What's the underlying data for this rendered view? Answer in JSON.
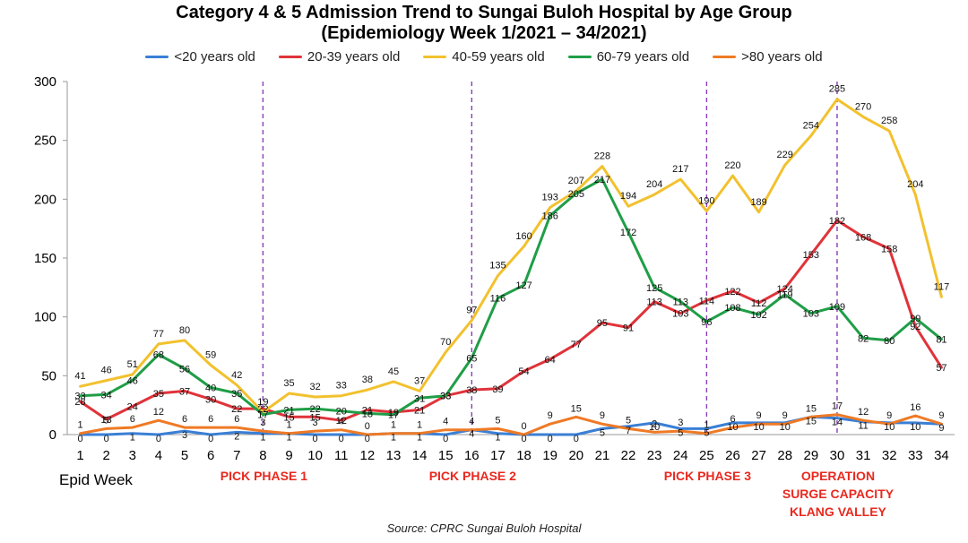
{
  "chart_data": {
    "type": "line",
    "title": "Category 4 & 5 Admission Trend to Sungai Buloh Hospital by Age Group",
    "subtitle": "(Epidemiology Week 1/2021  –  34/2021)",
    "xlabel": "Epid Week",
    "x": [
      1,
      2,
      3,
      4,
      5,
      6,
      7,
      8,
      9,
      10,
      11,
      12,
      13,
      14,
      15,
      16,
      17,
      18,
      19,
      20,
      21,
      22,
      23,
      24,
      25,
      26,
      27,
      28,
      29,
      30,
      31,
      32,
      33,
      34
    ],
    "ylim": [
      0,
      300
    ],
    "yticks": [
      0,
      50,
      100,
      150,
      200,
      250,
      300
    ],
    "grid": false,
    "legend_position": "top",
    "series": [
      {
        "name": "<20 years old",
        "color": "#3a7fd5",
        "values": [
          0,
          0,
          1,
          0,
          3,
          0,
          2,
          1,
          1,
          0,
          0,
          0,
          1,
          1,
          0,
          4,
          1,
          0,
          0,
          0,
          5,
          7,
          10,
          5,
          5,
          10,
          10,
          10,
          15,
          14,
          11,
          10,
          10,
          9
        ],
        "labels": [
          "0",
          "0",
          "1",
          "0",
          "3",
          "0",
          "2",
          "1",
          "1",
          "0",
          "0",
          "0",
          "1",
          "1",
          "0",
          "4",
          "1",
          "0",
          "0",
          "0",
          "5",
          "7",
          "10",
          "5",
          "5",
          "10",
          "10",
          "10",
          "15",
          "14",
          "11",
          "10",
          "10",
          "9"
        ]
      },
      {
        "name": "20-39 years old",
        "color": "#e0333a",
        "values": [
          28,
          13,
          24,
          35,
          37,
          30,
          22,
          22,
          15,
          15,
          12,
          21,
          19,
          21,
          33,
          38,
          39,
          54,
          64,
          77,
          95,
          91,
          113,
          103,
          114,
          122,
          112,
          124,
          153,
          182,
          168,
          158,
          92,
          57
        ],
        "labels": [
          "28",
          "13",
          "24",
          "35",
          "37",
          "30",
          "22",
          "22",
          "15",
          "15",
          "12",
          "21",
          "19",
          "21",
          "33",
          "38",
          "39",
          "54",
          "64",
          "77",
          "95",
          "91",
          "113",
          "103",
          "114",
          "122",
          "112",
          "124",
          "153",
          "182",
          "168",
          "158",
          "92",
          "57"
        ]
      },
      {
        "name": "40-59 years old",
        "color": "#f2c12e",
        "values": [
          41,
          46,
          51,
          77,
          80,
          59,
          42,
          19,
          35,
          32,
          33,
          38,
          45,
          37,
          70,
          97,
          135,
          160,
          193,
          207,
          228,
          194,
          204,
          217,
          190,
          220,
          189,
          229,
          254,
          285,
          270,
          258,
          204,
          117
        ],
        "labels": [
          "41",
          "46",
          "51",
          "77",
          "80",
          "59",
          "42",
          "19",
          "35",
          "32",
          "33",
          "38",
          "45",
          "37",
          "70",
          "97",
          "135",
          "160",
          "193",
          "207",
          "228",
          "194",
          "204",
          "217",
          "190",
          "220",
          "189",
          "229",
          "254",
          "285",
          "270",
          "258",
          "204",
          "117"
        ]
      },
      {
        "name": "60-79 years old",
        "color": "#1f9e47",
        "values": [
          33,
          34,
          46,
          68,
          56,
          40,
          35,
          17,
          21,
          22,
          20,
          18,
          17,
          31,
          33,
          65,
          116,
          127,
          186,
          205,
          217,
          172,
          125,
          113,
          96,
          108,
          102,
          119,
          103,
          109,
          82,
          80,
          99,
          81
        ],
        "labels": [
          "33",
          "34",
          "46",
          "68",
          "56",
          "40",
          "35",
          "17",
          "21",
          "22",
          "20",
          "18",
          "17",
          "31",
          "33",
          "65",
          "116",
          "127",
          "186",
          "205",
          "217",
          "172",
          "125",
          "113",
          "96",
          "108",
          "102",
          "119",
          "103",
          "109",
          "82",
          "80",
          "99",
          "81"
        ]
      },
      {
        "name": ">80 years old",
        "color": "#ef7a25",
        "values": [
          1,
          5,
          6,
          12,
          6,
          6,
          6,
          3,
          1,
          3,
          4,
          0,
          1,
          1,
          4,
          4,
          5,
          0,
          9,
          15,
          9,
          5,
          2,
          3,
          1,
          6,
          9,
          9,
          15,
          17,
          12,
          9,
          16,
          9
        ],
        "labels": [
          "1",
          "5",
          "6",
          "12",
          "6",
          "6",
          "6",
          "3",
          "1",
          "3",
          "4",
          "0",
          "1",
          "1",
          "4",
          "4",
          "5",
          "0",
          "9",
          "15",
          "9",
          "5",
          "2",
          "3",
          "1",
          "6",
          "9",
          "9",
          "15",
          "17",
          "12",
          "9",
          "16",
          "9"
        ]
      }
    ],
    "annotations": [
      {
        "text": "PICK PHASE 1",
        "week": 8
      },
      {
        "text": "PICK PHASE 2",
        "week": 16
      },
      {
        "text": "PICK PHASE 3",
        "week": 25
      },
      {
        "text": "OPERATION\nSURGE CAPACITY\nKLANG VALLEY",
        "week": 30
      }
    ],
    "phase_color": "#e8291f",
    "marker_line_color": "#8a3fb5"
  },
  "source": "Source: CPRC Sungai Buloh Hospital"
}
